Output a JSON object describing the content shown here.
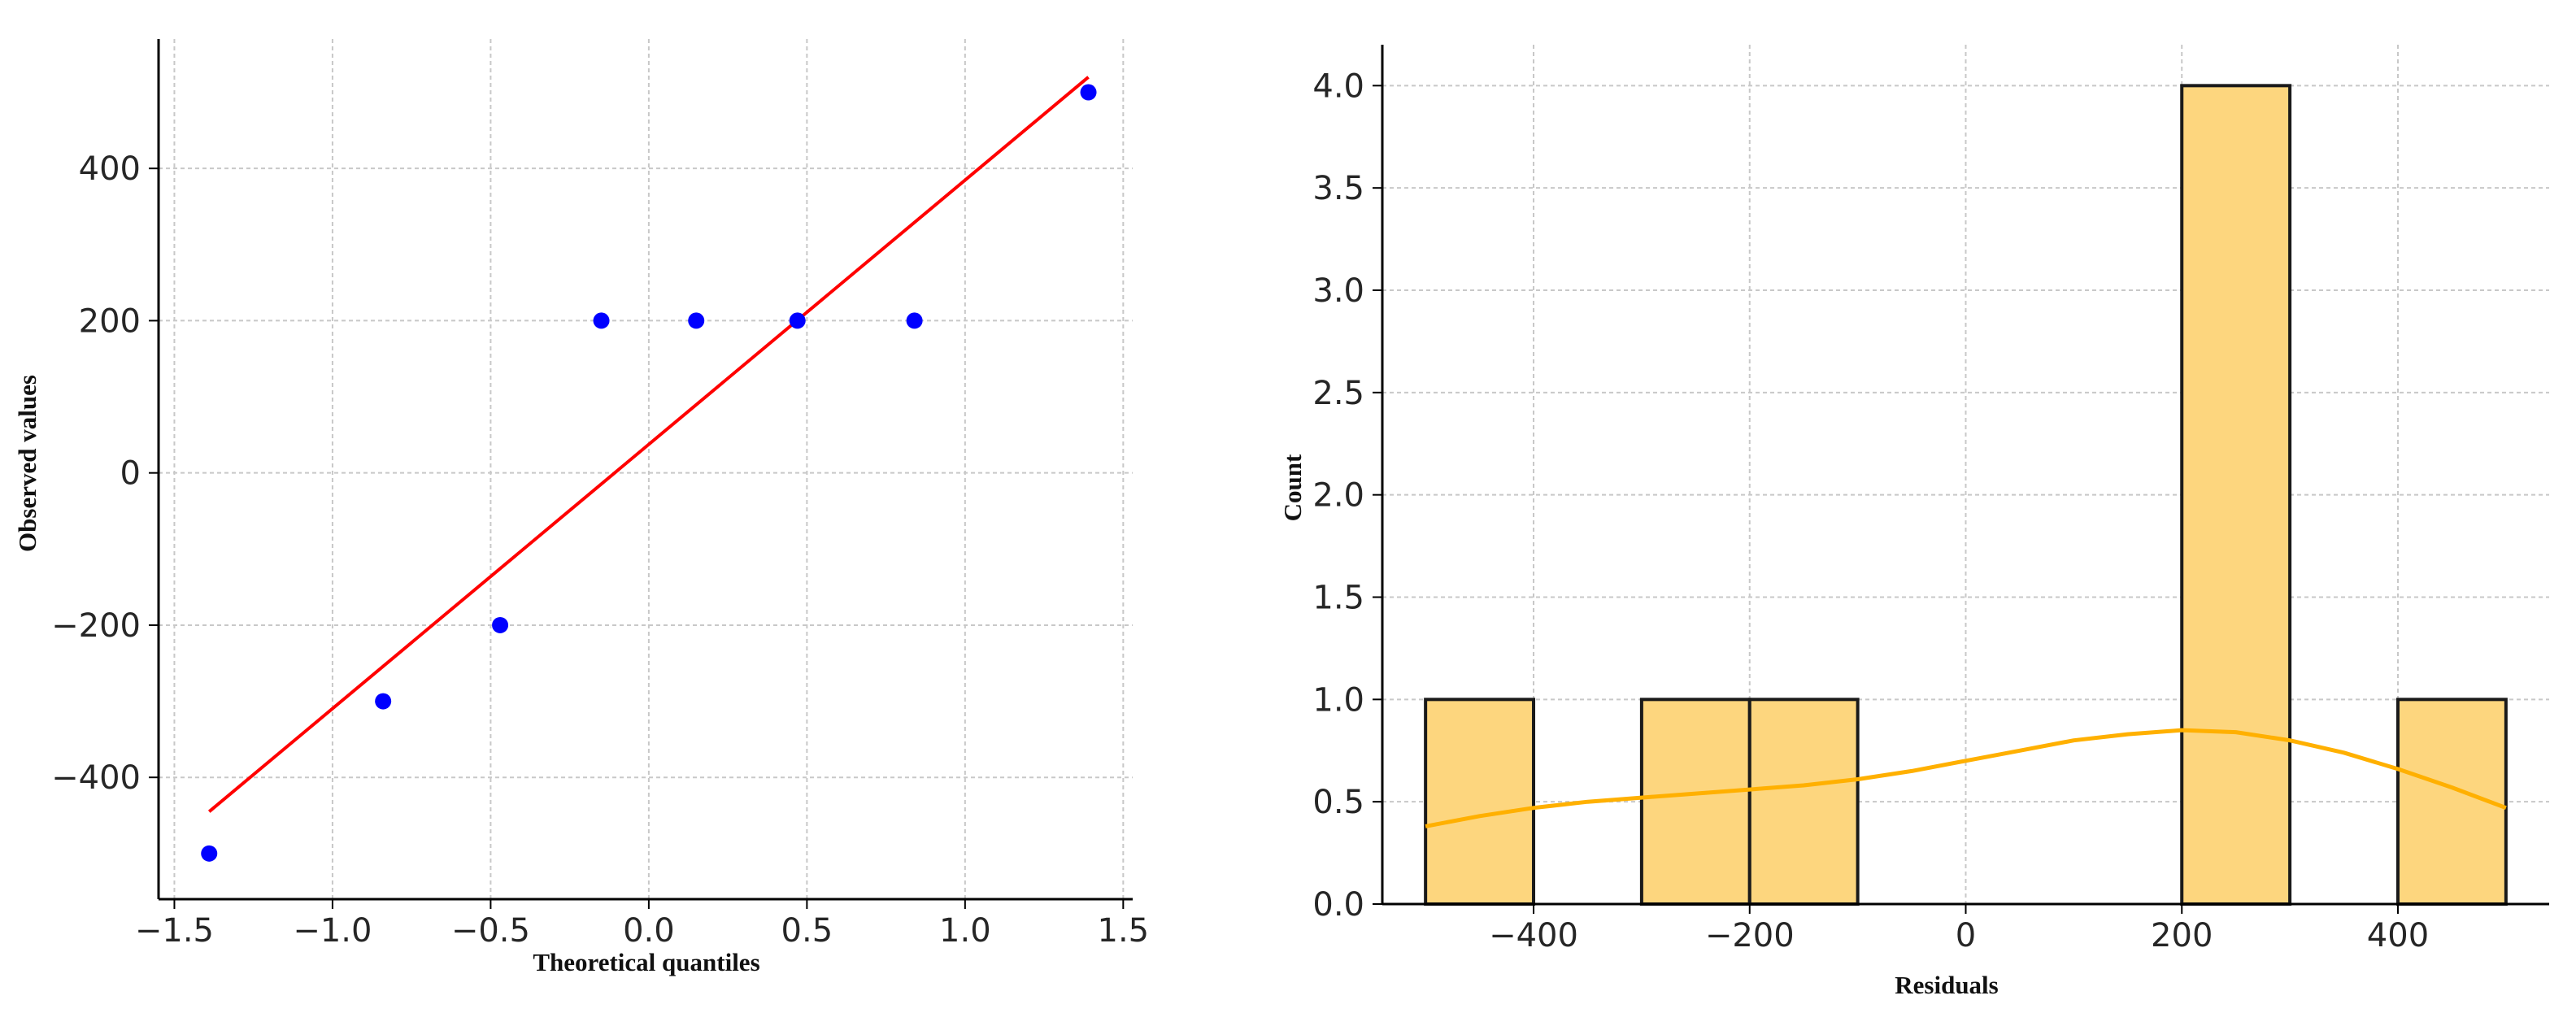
{
  "chart_data": [
    {
      "type": "scatter",
      "title": "",
      "xlabel": "Theoretical quantiles",
      "ylabel": "Observed values",
      "xlim": [
        -1.55,
        1.53
      ],
      "ylim": [
        -560,
        570
      ],
      "xticks": [
        -1.5,
        -1.0,
        -0.5,
        0.0,
        0.5,
        1.0,
        1.5
      ],
      "xtick_labels": [
        "−1.5",
        "−1.0",
        "−0.5",
        "0.0",
        "0.5",
        "1.0",
        "1.5"
      ],
      "yticks": [
        -400,
        -200,
        0,
        200,
        400
      ],
      "ytick_labels": [
        "−400",
        "−200",
        "0",
        "200",
        "400"
      ],
      "grid": true,
      "points": [
        {
          "x": -1.39,
          "y": -500
        },
        {
          "x": -0.84,
          "y": -300
        },
        {
          "x": -0.47,
          "y": -200
        },
        {
          "x": -0.15,
          "y": 200
        },
        {
          "x": 0.15,
          "y": 200
        },
        {
          "x": 0.47,
          "y": 200
        },
        {
          "x": 0.84,
          "y": 200
        },
        {
          "x": 1.39,
          "y": 500
        }
      ],
      "fit_line": {
        "x": [
          -1.39,
          1.39
        ],
        "y": [
          -445,
          520
        ]
      },
      "colors": {
        "points": "#0000ff",
        "fit_line": "#ff0000"
      }
    },
    {
      "type": "bar",
      "subtype": "histogram",
      "title": "",
      "xlabel": "Residuals",
      "ylabel": "Count",
      "xlim": [
        -540,
        540
      ],
      "ylim": [
        0,
        4.2
      ],
      "xticks": [
        -400,
        -200,
        0,
        200,
        400
      ],
      "xtick_labels": [
        "−400",
        "−200",
        "0",
        "200",
        "400"
      ],
      "yticks": [
        0.0,
        0.5,
        1.0,
        1.5,
        2.0,
        2.5,
        3.0,
        3.5,
        4.0
      ],
      "ytick_labels": [
        "0.0",
        "0.5",
        "1.0",
        "1.5",
        "2.0",
        "2.5",
        "3.0",
        "3.5",
        "4.0"
      ],
      "grid": true,
      "bins": [
        {
          "x0": -500,
          "x1": -400,
          "count": 1
        },
        {
          "x0": -400,
          "x1": -300,
          "count": 0
        },
        {
          "x0": -300,
          "x1": -200,
          "count": 1
        },
        {
          "x0": -200,
          "x1": -100,
          "count": 1
        },
        {
          "x0": -100,
          "x1": 0,
          "count": 0
        },
        {
          "x0": 0,
          "x1": 100,
          "count": 0
        },
        {
          "x0": 100,
          "x1": 200,
          "count": 0
        },
        {
          "x0": 200,
          "x1": 300,
          "count": 4
        },
        {
          "x0": 300,
          "x1": 400,
          "count": 0
        },
        {
          "x0": 400,
          "x1": 500,
          "count": 1
        }
      ],
      "kde": {
        "x": [
          -500,
          -450,
          -400,
          -350,
          -300,
          -250,
          -200,
          -150,
          -100,
          -50,
          0,
          50,
          100,
          150,
          200,
          250,
          300,
          350,
          400,
          450,
          500
        ],
        "y": [
          0.38,
          0.43,
          0.47,
          0.5,
          0.52,
          0.54,
          0.56,
          0.58,
          0.61,
          0.65,
          0.7,
          0.75,
          0.8,
          0.83,
          0.85,
          0.84,
          0.8,
          0.74,
          0.66,
          0.57,
          0.47
        ]
      },
      "colors": {
        "bar_fill": "#fdd67e",
        "bar_edge": "#1a1a1a",
        "kde_line": "#ffb000"
      }
    }
  ]
}
